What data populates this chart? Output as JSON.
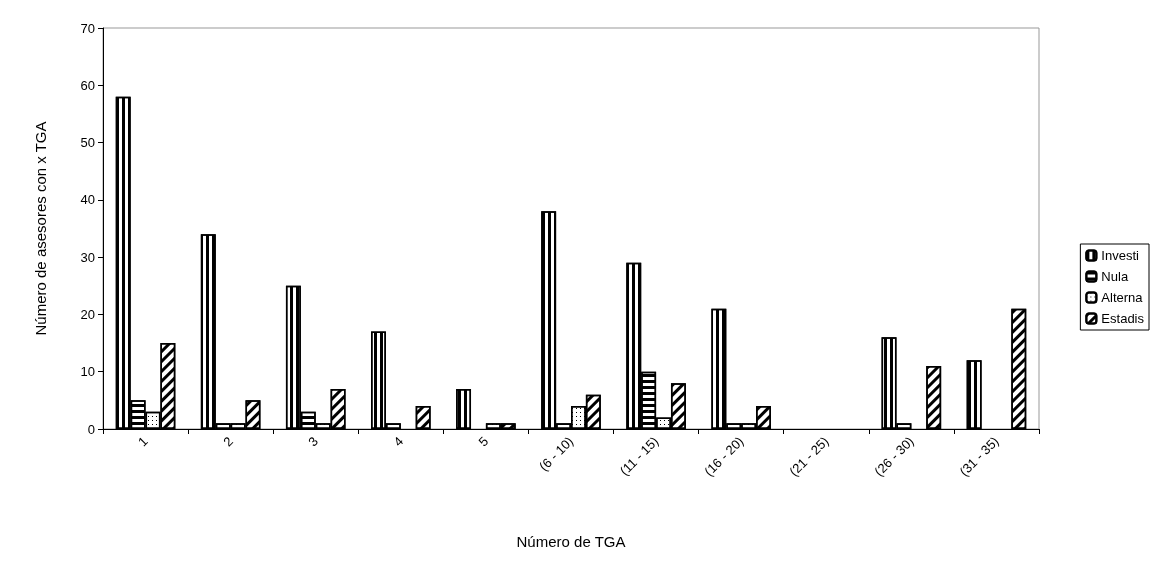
{
  "chart_data": {
    "type": "bar",
    "xlabel": "Número de TGA",
    "ylabel": "Número de asesores con x TGA",
    "categories": [
      "1",
      "2",
      "3",
      "4",
      "5",
      "(6 - 10)",
      "(11 - 15)",
      "(16 - 20)",
      "(21 - 25)",
      "(26 - 30)",
      "(31 - 35)"
    ],
    "series": [
      {
        "name": "Investi",
        "color": "#ffffff",
        "values": [
          58,
          34,
          25,
          17,
          7,
          38,
          29,
          21,
          0,
          16,
          12
        ]
      },
      {
        "name": "Nula",
        "color": "#ffffff",
        "values": [
          5,
          1,
          3,
          1,
          0,
          1,
          10,
          1,
          0,
          1,
          0
        ]
      },
      {
        "name": "Alterna",
        "color": "#ffffff",
        "values": [
          3,
          1,
          1,
          0,
          1,
          4,
          2,
          1,
          0,
          0,
          0
        ]
      },
      {
        "name": "Estadis",
        "color": "#ffffff",
        "values": [
          15,
          5,
          7,
          4,
          1,
          6,
          8,
          4,
          0,
          11,
          21
        ]
      }
    ],
    "ylim": [
      0,
      70
    ],
    "yticks": [
      0,
      10,
      20,
      30,
      40,
      50,
      60,
      70
    ],
    "grid": false,
    "legend": "right"
  }
}
